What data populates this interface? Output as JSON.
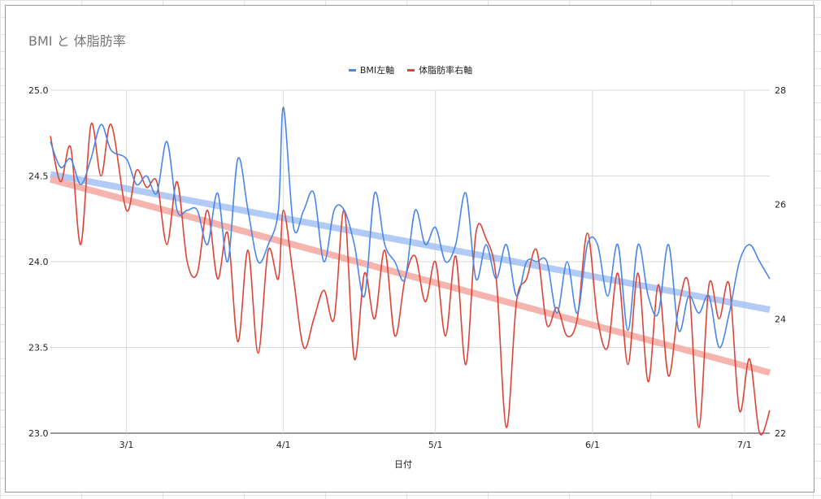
{
  "chart_data": {
    "type": "line",
    "title": "BMI と 体脂肪率",
    "xlabel": "日付",
    "x_ticks": [
      "3/1",
      "4/1",
      "5/1",
      "6/1",
      "7/1"
    ],
    "x_range": [
      "2/15",
      "7/6"
    ],
    "left_axis": {
      "ticks": [
        "25.0",
        "24.5",
        "24.0",
        "23.5",
        "23.0"
      ],
      "ylim": [
        23.0,
        25.0
      ]
    },
    "right_axis": {
      "ticks": [
        "28",
        "26",
        "24",
        "22"
      ],
      "ylim": [
        22,
        28
      ]
    },
    "grid": true,
    "legend_position": "top",
    "colors": {
      "bmi": "#4a86e8",
      "bodyfat": "#db4437",
      "bmi_trend": "#a4c2f4",
      "bodyfat_trend": "#f4a7a1"
    },
    "series": [
      {
        "name": "BMI左軸",
        "axis": "left",
        "x": [
          "2/15",
          "2/17",
          "2/19",
          "2/21",
          "2/23",
          "2/25",
          "2/27",
          "3/1",
          "3/3",
          "3/5",
          "3/7",
          "3/9",
          "3/11",
          "3/13",
          "3/15",
          "3/17",
          "3/19",
          "3/21",
          "3/23",
          "3/25",
          "3/27",
          "3/29",
          "3/31",
          "4/1",
          "4/3",
          "4/5",
          "4/7",
          "4/9",
          "4/11",
          "4/13",
          "4/15",
          "4/17",
          "4/19",
          "4/21",
          "4/23",
          "4/25",
          "4/27",
          "4/29",
          "5/1",
          "5/3",
          "5/5",
          "5/7",
          "5/9",
          "5/11",
          "5/13",
          "5/15",
          "5/17",
          "5/19",
          "5/21",
          "5/23",
          "5/25",
          "5/27",
          "5/29",
          "5/31",
          "6/2",
          "6/4",
          "6/6",
          "6/8",
          "6/10",
          "6/12",
          "6/14",
          "6/16",
          "6/18",
          "6/20",
          "6/22",
          "6/24",
          "6/26",
          "6/28",
          "6/30",
          "7/2",
          "7/4",
          "7/6"
        ],
        "values": [
          24.7,
          24.55,
          24.6,
          24.45,
          24.6,
          24.8,
          24.65,
          24.6,
          24.45,
          24.5,
          24.4,
          24.7,
          24.3,
          24.3,
          24.3,
          24.1,
          24.4,
          24.0,
          24.6,
          24.3,
          24.0,
          24.1,
          24.3,
          24.9,
          24.2,
          24.3,
          24.4,
          24.0,
          24.3,
          24.3,
          24.1,
          23.8,
          24.4,
          24.1,
          24.0,
          23.9,
          24.3,
          24.1,
          24.2,
          24.0,
          24.1,
          24.4,
          23.9,
          24.1,
          23.9,
          24.1,
          23.8,
          24.0,
          24.0,
          24.0,
          23.7,
          24.0,
          23.7,
          24.1,
          24.1,
          23.8,
          24.1,
          23.6,
          24.1,
          23.8,
          23.7,
          24.1,
          23.6,
          23.8,
          23.7,
          23.8,
          23.5,
          23.7,
          24.0,
          24.1,
          24.0,
          23.9
        ]
      },
      {
        "name": "体脂肪率右軸",
        "axis": "right",
        "x": [
          "2/15",
          "2/17",
          "2/19",
          "2/21",
          "2/23",
          "2/25",
          "2/27",
          "3/1",
          "3/3",
          "3/5",
          "3/7",
          "3/9",
          "3/11",
          "3/13",
          "3/15",
          "3/17",
          "3/19",
          "3/21",
          "3/23",
          "3/25",
          "3/27",
          "3/29",
          "3/31",
          "4/1",
          "4/3",
          "4/5",
          "4/7",
          "4/9",
          "4/11",
          "4/13",
          "4/15",
          "4/17",
          "4/19",
          "4/21",
          "4/23",
          "4/25",
          "4/27",
          "4/29",
          "5/1",
          "5/3",
          "5/5",
          "5/7",
          "5/9",
          "5/11",
          "5/13",
          "5/15",
          "5/17",
          "5/19",
          "5/21",
          "5/23",
          "5/25",
          "5/27",
          "5/29",
          "5/31",
          "6/2",
          "6/4",
          "6/6",
          "6/8",
          "6/10",
          "6/12",
          "6/14",
          "6/16",
          "6/18",
          "6/20",
          "6/22",
          "6/24",
          "6/26",
          "6/28",
          "6/30",
          "7/2",
          "7/4",
          "7/6"
        ],
        "values": [
          27.2,
          26.4,
          27.0,
          25.3,
          27.4,
          26.5,
          27.4,
          25.9,
          26.6,
          26.3,
          26.4,
          25.3,
          26.4,
          25.0,
          24.8,
          25.9,
          24.7,
          25.5,
          23.6,
          25.2,
          23.4,
          25.2,
          24.7,
          25.9,
          24.7,
          23.5,
          24.0,
          24.5,
          24.0,
          25.9,
          23.3,
          24.8,
          24.0,
          25.2,
          23.7,
          24.7,
          25.1,
          24.3,
          25.0,
          23.7,
          25.1,
          23.2,
          25.5,
          25.4,
          24.7,
          22.1,
          24.3,
          24.7,
          25.2,
          23.9,
          24.2,
          23.7,
          24.0,
          25.5,
          24.0,
          23.5,
          24.8,
          23.2,
          24.8,
          22.9,
          24.6,
          23.0,
          24.2,
          24.6,
          22.1,
          24.6,
          24.0,
          24.6,
          22.4,
          23.3,
          22.0,
          22.4
        ]
      }
    ],
    "trendlines": [
      {
        "series": "BMI左軸",
        "axis": "left",
        "start": [
          "2/15",
          24.51
        ],
        "end": [
          "7/6",
          23.72
        ]
      },
      {
        "series": "体脂肪率右軸",
        "axis": "right",
        "start": [
          "2/15",
          26.44
        ],
        "end": [
          "7/6",
          23.06
        ]
      }
    ]
  }
}
